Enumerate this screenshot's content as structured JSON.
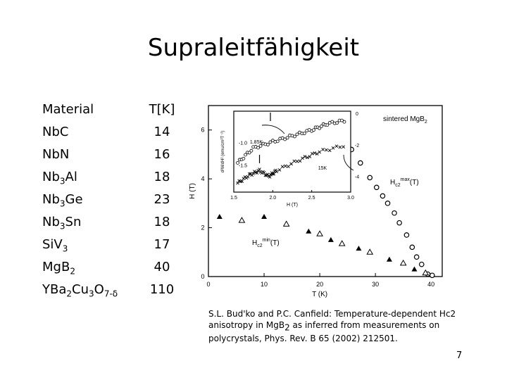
{
  "slide": {
    "title": "Supraleitfähigkeit",
    "page_number": "7"
  },
  "table": {
    "header_material": "Material",
    "header_tc": "T[K]",
    "rows": [
      {
        "pre": "Nb",
        "sub1": "",
        "mid": "C",
        "sub2": "",
        "post": "",
        "sub3": "",
        "tail": "",
        "tc": "14"
      },
      {
        "pre": "Nb",
        "sub1": "",
        "mid": "N",
        "sub2": "",
        "post": "",
        "sub3": "",
        "tail": "",
        "tc": "16"
      },
      {
        "pre": "Nb",
        "sub1": "3",
        "mid": "Al",
        "sub2": "",
        "post": "",
        "sub3": "",
        "tail": "",
        "tc": "18"
      },
      {
        "pre": "Nb",
        "sub1": "3",
        "mid": "Ge",
        "sub2": "",
        "post": "",
        "sub3": "",
        "tail": "",
        "tc": "23"
      },
      {
        "pre": "Nb",
        "sub1": "3",
        "mid": "Sn",
        "sub2": "",
        "post": "",
        "sub3": "",
        "tail": "",
        "tc": "18"
      },
      {
        "pre": "SiV",
        "sub1": "3",
        "mid": "",
        "sub2": "",
        "post": "",
        "sub3": "",
        "tail": "",
        "tc": "17"
      },
      {
        "pre": "MgB",
        "sub1": "2",
        "mid": "",
        "sub2": "",
        "post": "",
        "sub3": "",
        "tail": "",
        "tc": "40"
      },
      {
        "pre": "YBa",
        "sub1": "2",
        "mid": "Cu",
        "sub2": "3",
        "post": "O",
        "sub3": "7-δ",
        "tail": "",
        "tc": "110"
      }
    ]
  },
  "caption": {
    "line1": "S.L. Bud'ko and P.C. Canfield: Temperature-dependent Hc2",
    "line2a": "anisotropy in MgB",
    "line2sub": "2",
    "line2b": " as inferred from measurements on",
    "line3": "polycrystals, Phys.  Rev. B 65 (2002) 212501."
  },
  "chart_data": {
    "type": "scatter",
    "xlabel": "T (K)",
    "ylabel": "H (T)",
    "xlim": [
      0,
      42
    ],
    "ylim": [
      0,
      7
    ],
    "x_ticks": [
      "0",
      "10",
      "20",
      "30",
      "40"
    ],
    "y_ticks": [
      "0",
      "2",
      "4",
      "6"
    ],
    "corner_label": "sintered MgB",
    "corner_label_sub": "2",
    "annot_max": "H",
    "annot_max_sub": "c2",
    "annot_max_sup": "max",
    "annot_max_tail": "(T)",
    "annot_min": "H",
    "annot_min_sub": "c2",
    "annot_min_sup": "min",
    "annot_min_tail": "(T)",
    "series": [
      {
        "marker": "open-circle",
        "points": [
          [
            23.8,
            5.6
          ],
          [
            25.7,
            5.2
          ],
          [
            27.3,
            4.65
          ],
          [
            29.0,
            4.05
          ],
          [
            30.2,
            3.65
          ],
          [
            31.3,
            3.3
          ],
          [
            32.2,
            3.0
          ],
          [
            33.4,
            2.6
          ],
          [
            34.3,
            2.2
          ],
          [
            35.6,
            1.7
          ],
          [
            36.6,
            1.2
          ],
          [
            37.4,
            0.8
          ],
          [
            38.3,
            0.5
          ],
          [
            39.4,
            0.1
          ],
          [
            40.2,
            0.05
          ]
        ]
      },
      {
        "marker": "filled-triangle",
        "points": [
          [
            2.0,
            2.45
          ],
          [
            10.0,
            2.45
          ],
          [
            18.0,
            1.85
          ],
          [
            22.0,
            1.5
          ],
          [
            27.0,
            1.15
          ],
          [
            32.5,
            0.7
          ],
          [
            37.0,
            0.3
          ]
        ]
      },
      {
        "marker": "open-triangle",
        "points": [
          [
            6.0,
            2.3
          ],
          [
            14.0,
            2.15
          ],
          [
            20.0,
            1.75
          ],
          [
            24.0,
            1.35
          ],
          [
            29.0,
            1.0
          ],
          [
            35.0,
            0.55
          ],
          [
            39.0,
            0.15
          ]
        ]
      }
    ],
    "inset": {
      "xlabel": "H (T)",
      "ylabel_left": "d²M/dH² (emu/cm³T⁻²)",
      "xlim": [
        1.5,
        3.0
      ],
      "x_ticks": [
        "1.5",
        "2.0",
        "2.5",
        "3.0"
      ],
      "y_ticks_left": [
        "-1.0",
        "-1.5"
      ],
      "y_ticks_right": [
        "0",
        "-2",
        "-4"
      ],
      "label_1": "1.85K",
      "label_2": "15K",
      "series": [
        {
          "marker": "open-circle",
          "trend": [
            [
              1.55,
              -1.45
            ],
            [
              1.75,
              -1.12
            ],
            [
              2.0,
              -0.98
            ],
            [
              2.25,
              -0.85
            ],
            [
              2.5,
              -0.72
            ],
            [
              2.7,
              -0.58
            ],
            [
              2.95,
              -0.5
            ]
          ]
        },
        {
          "marker": "cross",
          "trend": [
            [
              1.55,
              -1.9
            ],
            [
              1.7,
              -1.72
            ],
            [
              1.83,
              -1.62
            ],
            [
              1.95,
              -1.75
            ],
            [
              2.05,
              -1.62
            ],
            [
              2.35,
              -1.38
            ],
            [
              2.6,
              -1.2
            ],
            [
              2.95,
              -1.05
            ]
          ]
        }
      ]
    }
  }
}
